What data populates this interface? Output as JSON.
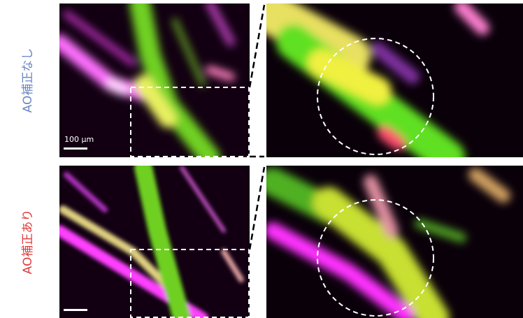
{
  "rows": [
    {
      "label": "AO補正なし"
    },
    {
      "label": "AO補正あり"
    }
  ],
  "scale_bar": {
    "label": "100 µm"
  }
}
